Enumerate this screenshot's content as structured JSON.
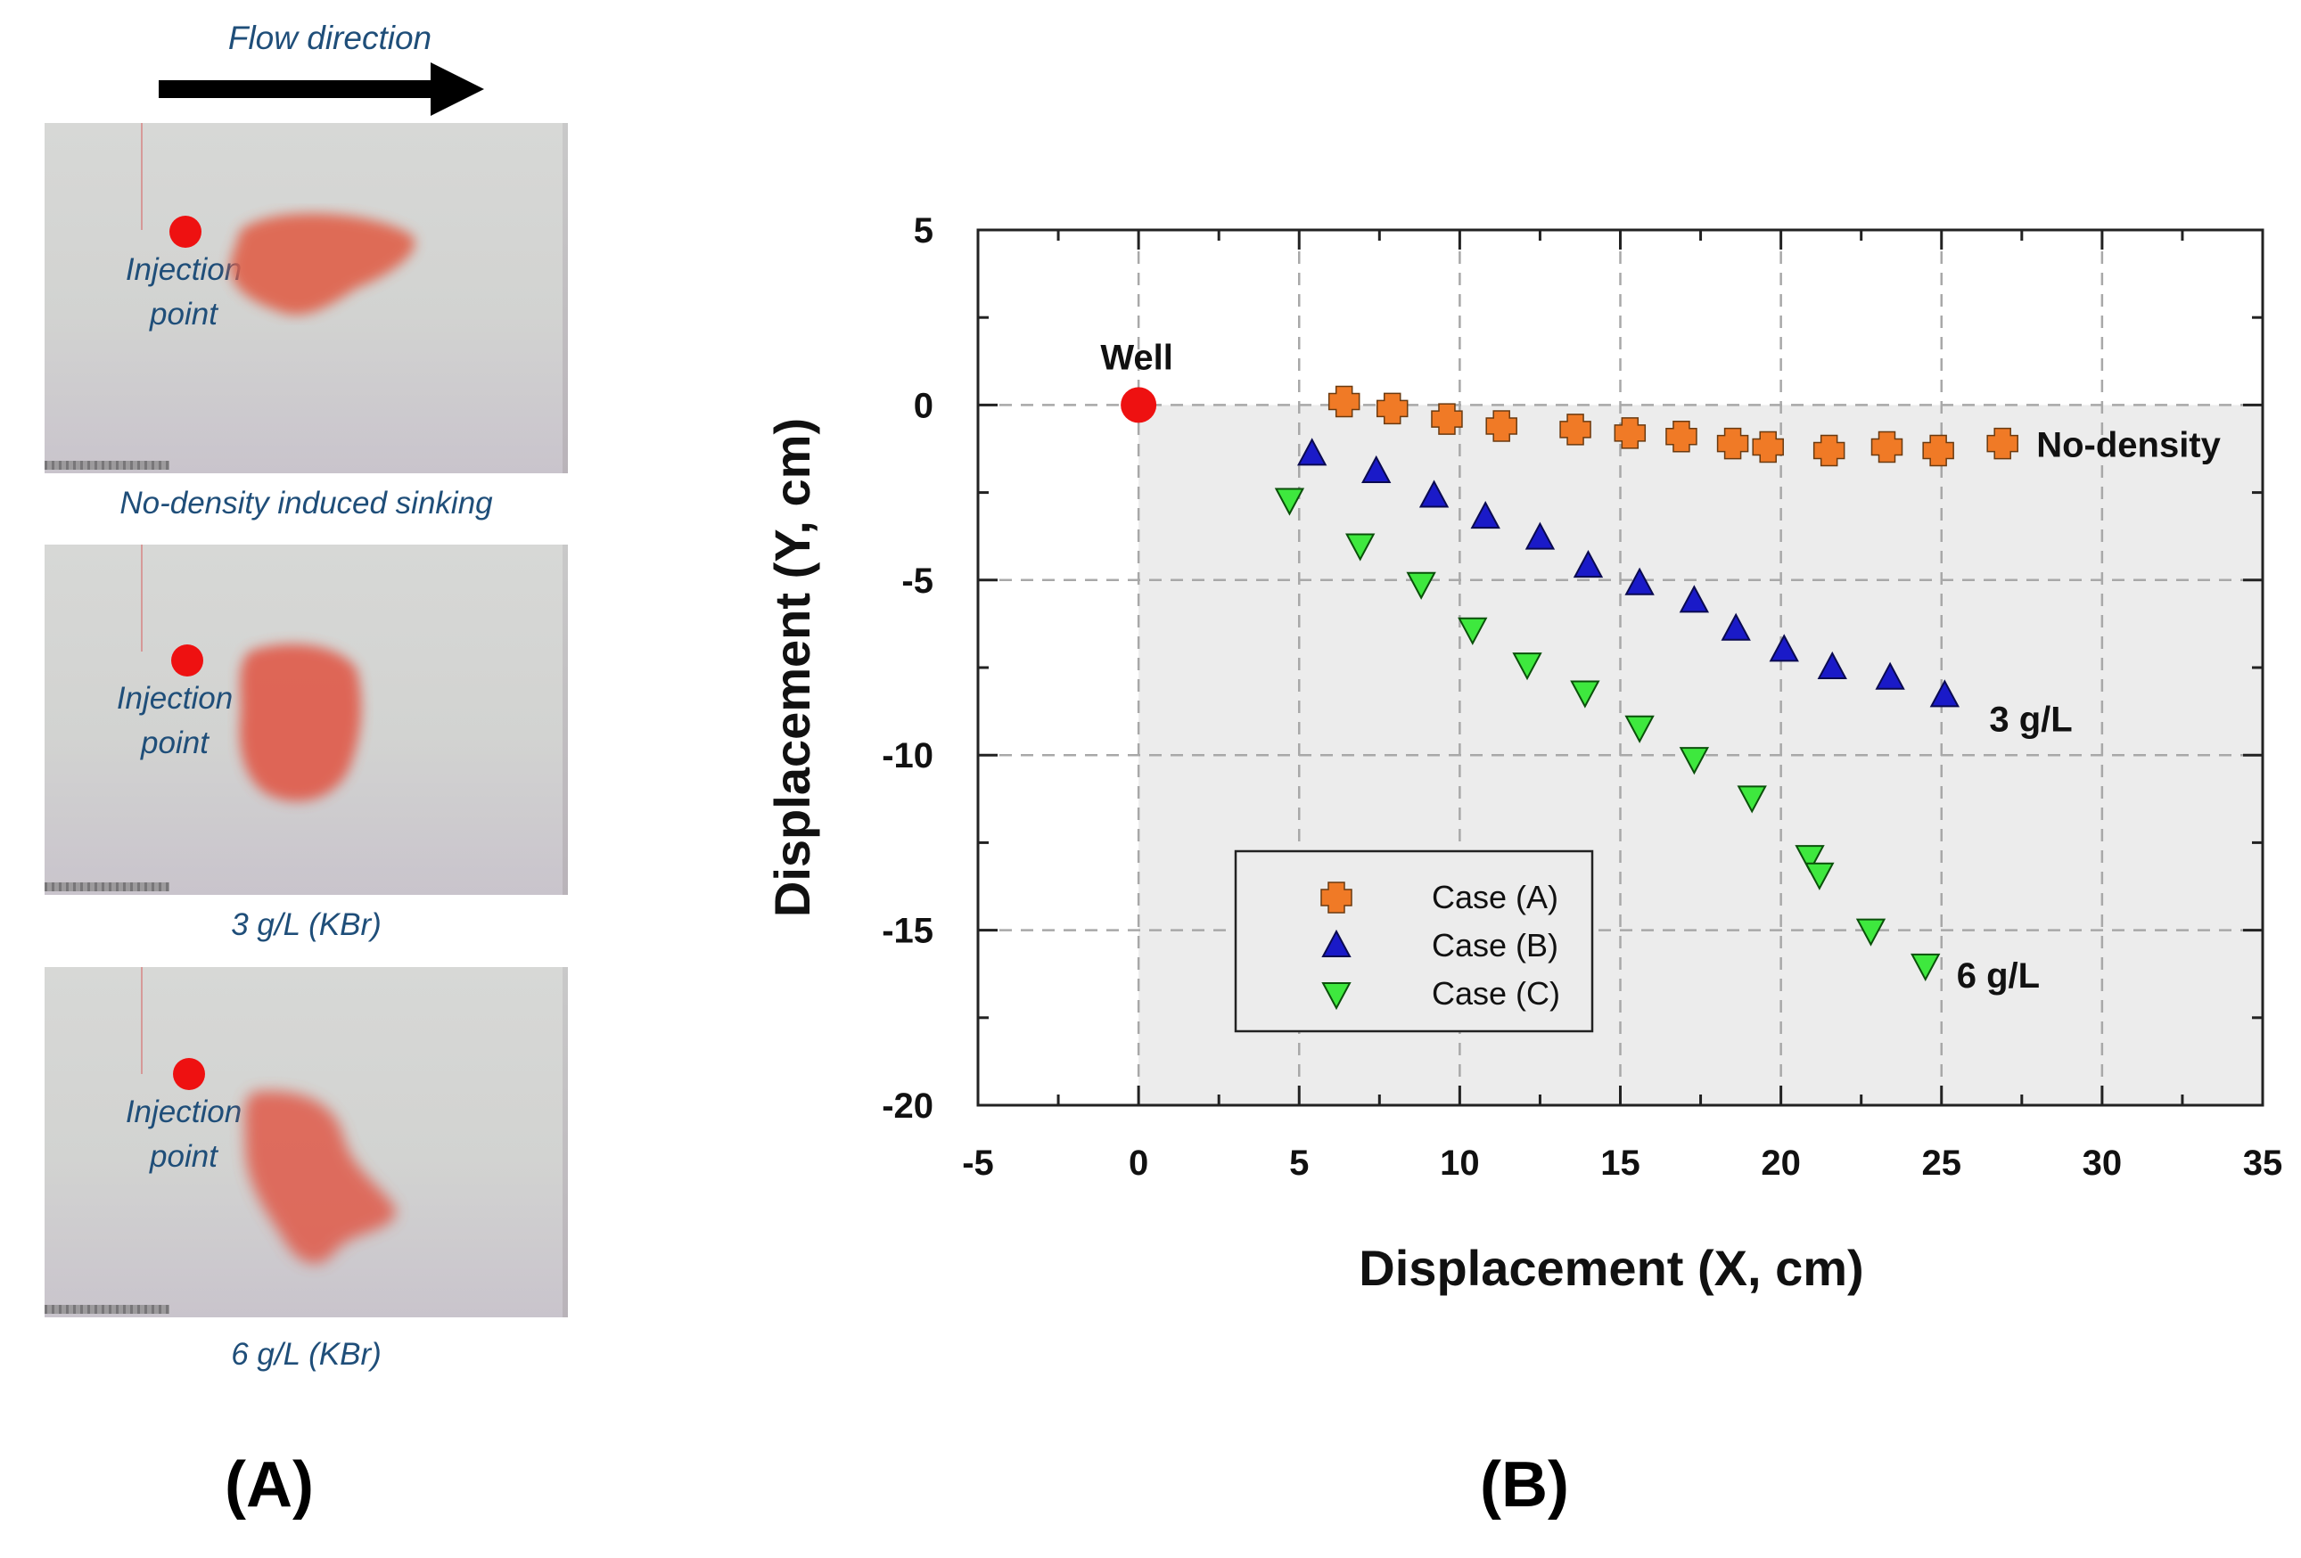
{
  "panel_a": {
    "flow_label": "Flow direction",
    "photos": [
      {
        "injection_label_1": "Injection",
        "injection_label_2": "point",
        "caption": "No-density induced sinking"
      },
      {
        "injection_label_1": "Injection",
        "injection_label_2": "point",
        "caption": "3 g/L (KBr)"
      },
      {
        "injection_label_1": "Injection",
        "injection_label_2": "point",
        "caption": "6 g/L (KBr)"
      }
    ],
    "panel_label": "(A)"
  },
  "panel_b": {
    "panel_label": "(B)"
  },
  "colors": {
    "case_a": "#f07a26",
    "case_b": "#1a1ac8",
    "case_c": "#3ee83e",
    "well": "#ee1111",
    "plot_bg": "#ececec",
    "text_blue": "#1f4e79"
  },
  "chart_data": {
    "type": "scatter",
    "title": "",
    "xlabel": "Displacement (X, cm)",
    "ylabel": "Displacement (Y, cm)",
    "xlim": [
      -5,
      35
    ],
    "ylim": [
      -20,
      5
    ],
    "xticks": [
      -5,
      0,
      5,
      10,
      15,
      20,
      25,
      30,
      35
    ],
    "yticks": [
      -20,
      -15,
      -10,
      -5,
      0,
      5
    ],
    "grid": true,
    "legend_position": "lower-left",
    "well": {
      "label": "Well",
      "x": 0,
      "y": 0
    },
    "series": [
      {
        "name": "Case (A)",
        "marker": "plus",
        "annotation": "No-density",
        "x": [
          6.4,
          7.9,
          9.6,
          11.3,
          13.6,
          15.3,
          16.9,
          18.5,
          19.6,
          21.5,
          23.3,
          24.9,
          26.9
        ],
        "y": [
          0.1,
          -0.1,
          -0.4,
          -0.6,
          -0.7,
          -0.8,
          -0.9,
          -1.1,
          -1.2,
          -1.3,
          -1.2,
          -1.3,
          -1.1
        ]
      },
      {
        "name": "Case (B)",
        "marker": "triangle-up",
        "annotation": "3 g/L",
        "x": [
          5.4,
          7.4,
          9.2,
          10.8,
          12.5,
          14.0,
          15.6,
          17.3,
          18.6,
          20.1,
          21.6,
          23.4,
          25.1
        ],
        "y": [
          -1.4,
          -1.9,
          -2.6,
          -3.2,
          -3.8,
          -4.6,
          -5.1,
          -5.6,
          -6.4,
          -7.0,
          -7.5,
          -7.8,
          -8.3
        ]
      },
      {
        "name": "Case (C)",
        "marker": "triangle-down",
        "annotation": "6 g/L",
        "x": [
          4.7,
          6.9,
          8.8,
          10.4,
          12.1,
          13.9,
          15.6,
          17.3,
          19.1,
          20.9,
          21.2,
          22.8,
          24.5
        ],
        "y": [
          -2.7,
          -4.0,
          -5.1,
          -6.4,
          -7.4,
          -8.2,
          -9.2,
          -10.1,
          -11.2,
          -12.9,
          -13.4,
          -15.0,
          -16.0
        ]
      }
    ]
  }
}
